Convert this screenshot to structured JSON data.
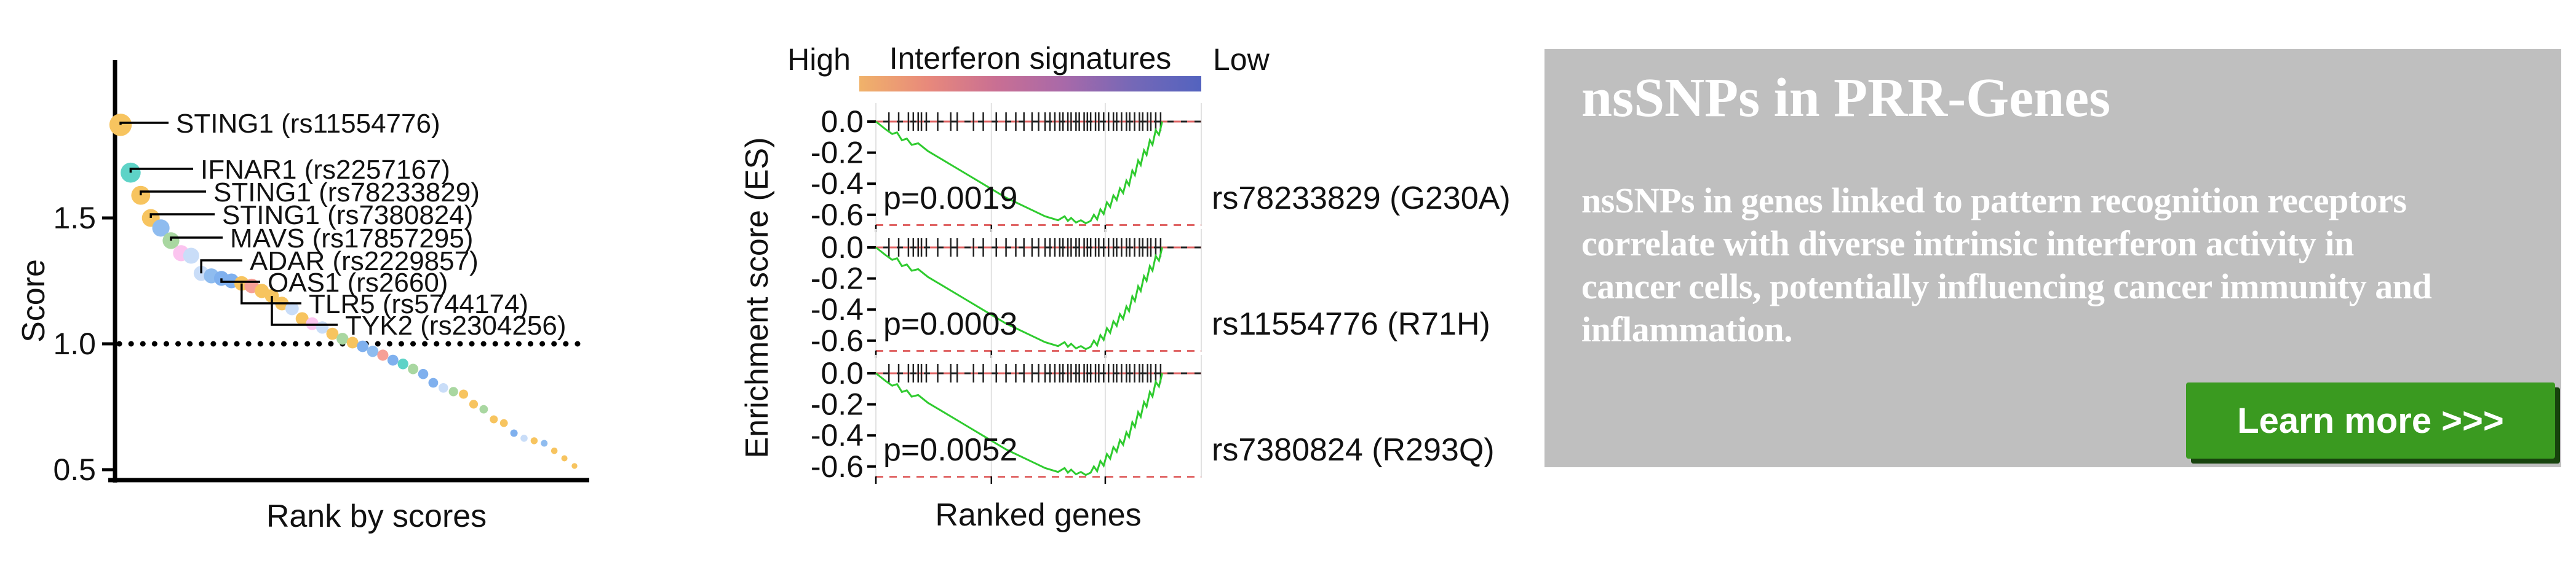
{
  "banner": {
    "title": "nsSNPs in PRR-Genes",
    "body_lines": [
      "nsSNPs in genes linked to pattern recognition receptors",
      "correlate with diverse intrinsic interferon activity in",
      "cancer cells, potentially influencing cancer immunity and",
      "inflammation."
    ],
    "button_label": "Learn more >>>",
    "colors": {
      "bg": "#bfbfbf",
      "text": "#ffffff",
      "button_bg": "#3a9a20",
      "button_shadow": "#17430d",
      "button_text": "#ffffff"
    }
  },
  "chart_data": [
    {
      "id": "rank_scatter",
      "type": "scatter",
      "title": "",
      "xlabel": "Rank by scores",
      "ylabel": "Score",
      "yticks": [
        1.5,
        1.0,
        0.5
      ],
      "ylim": [
        0.45,
        1.95
      ],
      "reference_line_y": 1.0,
      "grid": false,
      "palette": {
        "amber": "#F7C45F",
        "teal": "#5ED3C7",
        "lightblue": "#8FBCEF",
        "paleblue": "#C9DDF8",
        "green": "#A9D7A1",
        "pink": "#FBC4EF",
        "salmon": "#F6A097",
        "blue": "#7FB0EE"
      },
      "points": [
        {
          "s": 1.87,
          "c": "amber"
        },
        {
          "s": 1.68,
          "c": "teal"
        },
        {
          "s": 1.59,
          "c": "amber"
        },
        {
          "s": 1.5,
          "c": "amber"
        },
        {
          "s": 1.46,
          "c": "lightblue"
        },
        {
          "s": 1.41,
          "c": "green"
        },
        {
          "s": 1.36,
          "c": "pink"
        },
        {
          "s": 1.35,
          "c": "paleblue"
        },
        {
          "s": 1.28,
          "c": "paleblue"
        },
        {
          "s": 1.27,
          "c": "lightblue"
        },
        {
          "s": 1.26,
          "c": "blue"
        },
        {
          "s": 1.25,
          "c": "blue"
        },
        {
          "s": 1.24,
          "c": "amber"
        },
        {
          "s": 1.23,
          "c": "salmon"
        },
        {
          "s": 1.21,
          "c": "amber"
        },
        {
          "s": 1.19,
          "c": "amber"
        },
        {
          "s": 1.16,
          "c": "amber"
        },
        {
          "s": 1.14,
          "c": "paleblue"
        },
        {
          "s": 1.1,
          "c": "amber"
        },
        {
          "s": 1.08,
          "c": "pink"
        },
        {
          "s": 1.065,
          "c": "paleblue"
        },
        {
          "s": 1.04,
          "c": "amber"
        },
        {
          "s": 1.02,
          "c": "green"
        },
        {
          "s": 1.005,
          "c": "amber"
        },
        {
          "s": 0.99,
          "c": "blue"
        },
        {
          "s": 0.97,
          "c": "lightblue"
        },
        {
          "s": 0.955,
          "c": "salmon"
        },
        {
          "s": 0.935,
          "c": "blue"
        },
        {
          "s": 0.92,
          "c": "teal"
        },
        {
          "s": 0.9,
          "c": "green"
        },
        {
          "s": 0.88,
          "c": "blue"
        },
        {
          "s": 0.845,
          "c": "blue"
        },
        {
          "s": 0.825,
          "c": "paleblue"
        },
        {
          "s": 0.81,
          "c": "green"
        },
        {
          "s": 0.8,
          "c": "amber"
        },
        {
          "s": 0.76,
          "c": "amber"
        },
        {
          "s": 0.74,
          "c": "green"
        },
        {
          "s": 0.7,
          "c": "amber"
        },
        {
          "s": 0.685,
          "c": "amber"
        },
        {
          "s": 0.645,
          "c": "blue"
        },
        {
          "s": 0.625,
          "c": "paleblue"
        },
        {
          "s": 0.615,
          "c": "amber"
        },
        {
          "s": 0.605,
          "c": "lightblue"
        },
        {
          "s": 0.575,
          "c": "amber"
        },
        {
          "s": 0.545,
          "c": "amber"
        },
        {
          "s": 0.515,
          "c": "amber"
        }
      ],
      "labels": [
        {
          "text": "STING1 (rs11554776)",
          "point": 0
        },
        {
          "text": "IFNAR1 (rs2257167)",
          "point": 1
        },
        {
          "text": "STING1 (rs78233829)",
          "point": 2
        },
        {
          "text": "STING1 (rs7380824)",
          "point": 3
        },
        {
          "text": "MAVS (rs17857295)",
          "point": 5
        },
        {
          "text": "ADAR (rs2229857)",
          "point": 8
        },
        {
          "text": "OAS1 (rs2660)",
          "point": 10
        },
        {
          "text": "TLR5 (rs5744174)",
          "point": 12
        },
        {
          "text": "TYK2 (rs2304256)",
          "point": 15
        }
      ]
    },
    {
      "id": "gsea_panels",
      "type": "line",
      "title": "Interferon signatures",
      "high_label": "High",
      "low_label": "Low",
      "xlabel": "Ranked genes",
      "ylabel": "Enrichment score (ES)",
      "yticks": [
        0.0,
        -0.2,
        -0.4,
        -0.6
      ],
      "ylim": [
        -0.7,
        0.08
      ],
      "grid": true,
      "grid_x": [
        0,
        0.355,
        0.705,
        1
      ],
      "gradient": [
        "#F0B26A",
        "#E8897B",
        "#C96F93",
        "#A869A9",
        "#7568B7",
        "#5363BF"
      ],
      "curve_color": "#2fcb2f",
      "dash_color": "#E06666",
      "panels": [
        {
          "p_label": "p=0.0019",
          "snp_label": "rs78233829 (G230A)",
          "es_min": -0.65
        },
        {
          "p_label": "p=0.0003",
          "snp_label": "rs11554776 (R71H)",
          "es_min": -0.65
        },
        {
          "p_label": "p=0.0052",
          "snp_label": "rs7380824 (R293Q)",
          "es_min": -0.65
        }
      ],
      "es_curve": [
        [
          0,
          0
        ],
        [
          0.03,
          -0.05
        ],
        [
          0.05,
          -0.08
        ],
        [
          0.065,
          -0.07
        ],
        [
          0.08,
          -0.12
        ],
        [
          0.095,
          -0.11
        ],
        [
          0.11,
          -0.15
        ],
        [
          0.13,
          -0.14
        ],
        [
          0.16,
          -0.19
        ],
        [
          0.2,
          -0.24
        ],
        [
          0.24,
          -0.29
        ],
        [
          0.28,
          -0.34
        ],
        [
          0.32,
          -0.39
        ],
        [
          0.36,
          -0.44
        ],
        [
          0.4,
          -0.49
        ],
        [
          0.44,
          -0.53
        ],
        [
          0.48,
          -0.57
        ],
        [
          0.52,
          -0.61
        ],
        [
          0.56,
          -0.635
        ],
        [
          0.58,
          -0.61
        ],
        [
          0.59,
          -0.64
        ],
        [
          0.6,
          -0.62
        ],
        [
          0.615,
          -0.65
        ],
        [
          0.63,
          -0.635
        ],
        [
          0.645,
          -0.655
        ],
        [
          0.66,
          -0.64
        ],
        [
          0.67,
          -0.6
        ],
        [
          0.68,
          -0.63
        ],
        [
          0.69,
          -0.565
        ],
        [
          0.7,
          -0.595
        ],
        [
          0.71,
          -0.52
        ],
        [
          0.72,
          -0.55
        ],
        [
          0.73,
          -0.475
        ],
        [
          0.74,
          -0.505
        ],
        [
          0.75,
          -0.43
        ],
        [
          0.76,
          -0.46
        ],
        [
          0.77,
          -0.38
        ],
        [
          0.778,
          -0.41
        ],
        [
          0.788,
          -0.315
        ],
        [
          0.796,
          -0.345
        ],
        [
          0.806,
          -0.25
        ],
        [
          0.814,
          -0.28
        ],
        [
          0.824,
          -0.185
        ],
        [
          0.832,
          -0.215
        ],
        [
          0.842,
          -0.12
        ],
        [
          0.85,
          -0.15
        ],
        [
          0.86,
          -0.055
        ],
        [
          0.87,
          -0.085
        ],
        [
          0.88,
          0
        ]
      ],
      "hit_ticks": [
        0.04,
        0.07,
        0.1,
        0.115,
        0.13,
        0.14,
        0.155,
        0.19,
        0.23,
        0.25,
        0.3,
        0.33,
        0.37,
        0.4,
        0.43,
        0.455,
        0.48,
        0.5,
        0.52,
        0.535,
        0.55,
        0.565,
        0.575,
        0.59,
        0.6,
        0.615,
        0.625,
        0.64,
        0.65,
        0.66,
        0.675,
        0.685,
        0.7,
        0.715,
        0.73,
        0.74,
        0.755,
        0.77,
        0.78,
        0.795,
        0.81,
        0.82,
        0.835,
        0.845,
        0.86,
        0.875
      ]
    }
  ]
}
